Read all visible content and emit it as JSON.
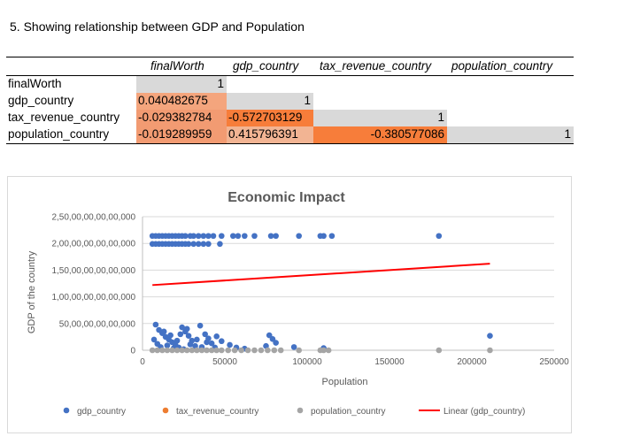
{
  "heading": "5. Showing relationship between GDP and Population",
  "correlation_table": {
    "columns": [
      "finalWorth",
      "gdp_country",
      "tax_revenue_country",
      "population_country"
    ],
    "rows": [
      {
        "label": "finalWorth",
        "values": [
          "1",
          "",
          "",
          ""
        ]
      },
      {
        "label": "gdp_country",
        "values": [
          "0.040482675",
          "1",
          "",
          ""
        ]
      },
      {
        "label": "tax_revenue_country",
        "values": [
          "-0.029382784",
          "-0.572703129",
          "1",
          ""
        ]
      },
      {
        "label": "population_country",
        "values": [
          "-0.019289959",
          "0.415796391",
          "-0.380577086",
          "1"
        ]
      }
    ],
    "colors": {
      "diag": "#d9d9d9",
      "light_salmon": "#f4a57d",
      "salmon": "#f29b72",
      "orange": "#f77d3a",
      "peach": "#f2b493"
    }
  },
  "chart_data": {
    "type": "scatter",
    "title": "Economic Impact",
    "xlabel": "Population",
    "ylabel": "GDP of the country",
    "xlim": [
      0,
      250000
    ],
    "ylim": [
      0,
      25000000000000
    ],
    "x_ticks": [
      "0",
      "50000",
      "100000",
      "150000",
      "200000",
      "250000"
    ],
    "y_ticks": [
      "0",
      "50,00,00,00,00,000",
      "1,00,00,00,00,00,000",
      "1,50,00,00,00,00,000",
      "2,00,00,00,00,00,000",
      "2,50,00,00,00,00,000"
    ],
    "grid": "horizontal",
    "legend_position": "bottom",
    "series": [
      {
        "name": "gdp_country",
        "color": "#4472c4",
        "points": [
          [
            6000,
            21400000000000
          ],
          [
            8000,
            21400000000000
          ],
          [
            10000,
            21400000000000
          ],
          [
            12000,
            21400000000000
          ],
          [
            14000,
            21400000000000
          ],
          [
            16000,
            21400000000000
          ],
          [
            18000,
            21400000000000
          ],
          [
            20000,
            21400000000000
          ],
          [
            22000,
            21400000000000
          ],
          [
            24000,
            21400000000000
          ],
          [
            26000,
            21400000000000
          ],
          [
            29000,
            21400000000000
          ],
          [
            31000,
            21400000000000
          ],
          [
            34000,
            21400000000000
          ],
          [
            37000,
            21400000000000
          ],
          [
            40000,
            21400000000000
          ],
          [
            43000,
            21400000000000
          ],
          [
            48000,
            21400000000000
          ],
          [
            55000,
            21400000000000
          ],
          [
            58000,
            21400000000000
          ],
          [
            62000,
            21400000000000
          ],
          [
            68000,
            21400000000000
          ],
          [
            78000,
            21400000000000
          ],
          [
            81000,
            21400000000000
          ],
          [
            95000,
            21400000000000
          ],
          [
            108000,
            21400000000000
          ],
          [
            110000,
            21400000000000
          ],
          [
            115000,
            21400000000000
          ],
          [
            180000,
            21400000000000
          ],
          [
            6000,
            19900000000000
          ],
          [
            8000,
            19900000000000
          ],
          [
            10000,
            19900000000000
          ],
          [
            12000,
            19900000000000
          ],
          [
            14000,
            19900000000000
          ],
          [
            16000,
            19900000000000
          ],
          [
            18000,
            19900000000000
          ],
          [
            20000,
            19900000000000
          ],
          [
            22000,
            19900000000000
          ],
          [
            24000,
            19900000000000
          ],
          [
            26000,
            19900000000000
          ],
          [
            28000,
            19900000000000
          ],
          [
            31000,
            19900000000000
          ],
          [
            34000,
            19900000000000
          ],
          [
            37000,
            19900000000000
          ],
          [
            40000,
            19900000000000
          ],
          [
            47000,
            19900000000000
          ],
          [
            8000,
            4800000000000
          ],
          [
            10000,
            3800000000000
          ],
          [
            12000,
            3200000000000
          ],
          [
            14000,
            2500000000000
          ],
          [
            16000,
            2000000000000
          ],
          [
            18000,
            1500000000000
          ],
          [
            20000,
            1000000000000
          ],
          [
            22000,
            500000000000
          ],
          [
            24000,
            4300000000000
          ],
          [
            26000,
            3500000000000
          ],
          [
            28000,
            2700000000000
          ],
          [
            30000,
            1800000000000
          ],
          [
            32000,
            800000000000
          ],
          [
            35000,
            4600000000000
          ],
          [
            38000,
            3000000000000
          ],
          [
            40000,
            2200000000000
          ],
          [
            42000,
            1300000000000
          ],
          [
            45000,
            2600000000000
          ],
          [
            48000,
            1700000000000
          ],
          [
            53000,
            1000000000000
          ],
          [
            57000,
            500000000000
          ],
          [
            62000,
            300000000000
          ],
          [
            77000,
            2800000000000
          ],
          [
            79000,
            2100000000000
          ],
          [
            81000,
            1400000000000
          ],
          [
            75000,
            800000000000
          ],
          [
            92000,
            600000000000
          ],
          [
            110000,
            400000000000
          ],
          [
            211000,
            2700000000000
          ],
          [
            7000,
            2000000000000
          ],
          [
            9000,
            1200000000000
          ],
          [
            11000,
            600000000000
          ],
          [
            13000,
            3500000000000
          ],
          [
            15000,
            900000000000
          ],
          [
            17000,
            2800000000000
          ],
          [
            19000,
            400000000000
          ],
          [
            21000,
            1800000000000
          ],
          [
            23000,
            3000000000000
          ],
          [
            25000,
            200000000000
          ],
          [
            27000,
            4000000000000
          ],
          [
            29000,
            1100000000000
          ],
          [
            33000,
            2000000000000
          ],
          [
            36000,
            600000000000
          ],
          [
            39000,
            1500000000000
          ],
          [
            44000,
            500000000000
          ]
        ]
      },
      {
        "name": "tax_revenue_country",
        "color": "#ed7d31",
        "points": []
      },
      {
        "name": "population_country",
        "color": "#a5a5a5",
        "points": [
          [
            6000,
            0
          ],
          [
            9000,
            0
          ],
          [
            12000,
            0
          ],
          [
            15000,
            0
          ],
          [
            18000,
            0
          ],
          [
            21000,
            0
          ],
          [
            24000,
            0
          ],
          [
            27000,
            0
          ],
          [
            30000,
            0
          ],
          [
            33000,
            0
          ],
          [
            36000,
            0
          ],
          [
            39000,
            0
          ],
          [
            42000,
            0
          ],
          [
            45000,
            0
          ],
          [
            48000,
            0
          ],
          [
            52000,
            0
          ],
          [
            56000,
            0
          ],
          [
            60000,
            0
          ],
          [
            64000,
            0
          ],
          [
            68000,
            0
          ],
          [
            72000,
            0
          ],
          [
            76000,
            0
          ],
          [
            80000,
            0
          ],
          [
            84000,
            0
          ],
          [
            95000,
            0
          ],
          [
            108000,
            0
          ],
          [
            110000,
            0
          ],
          [
            113000,
            0
          ],
          [
            180000,
            0
          ],
          [
            211000,
            0
          ]
        ]
      },
      {
        "name": "Linear (gdp_country)",
        "color": "#ff0000",
        "type": "trendline",
        "points": [
          [
            6000,
            12200000000000
          ],
          [
            211000,
            16200000000000
          ]
        ]
      }
    ]
  }
}
